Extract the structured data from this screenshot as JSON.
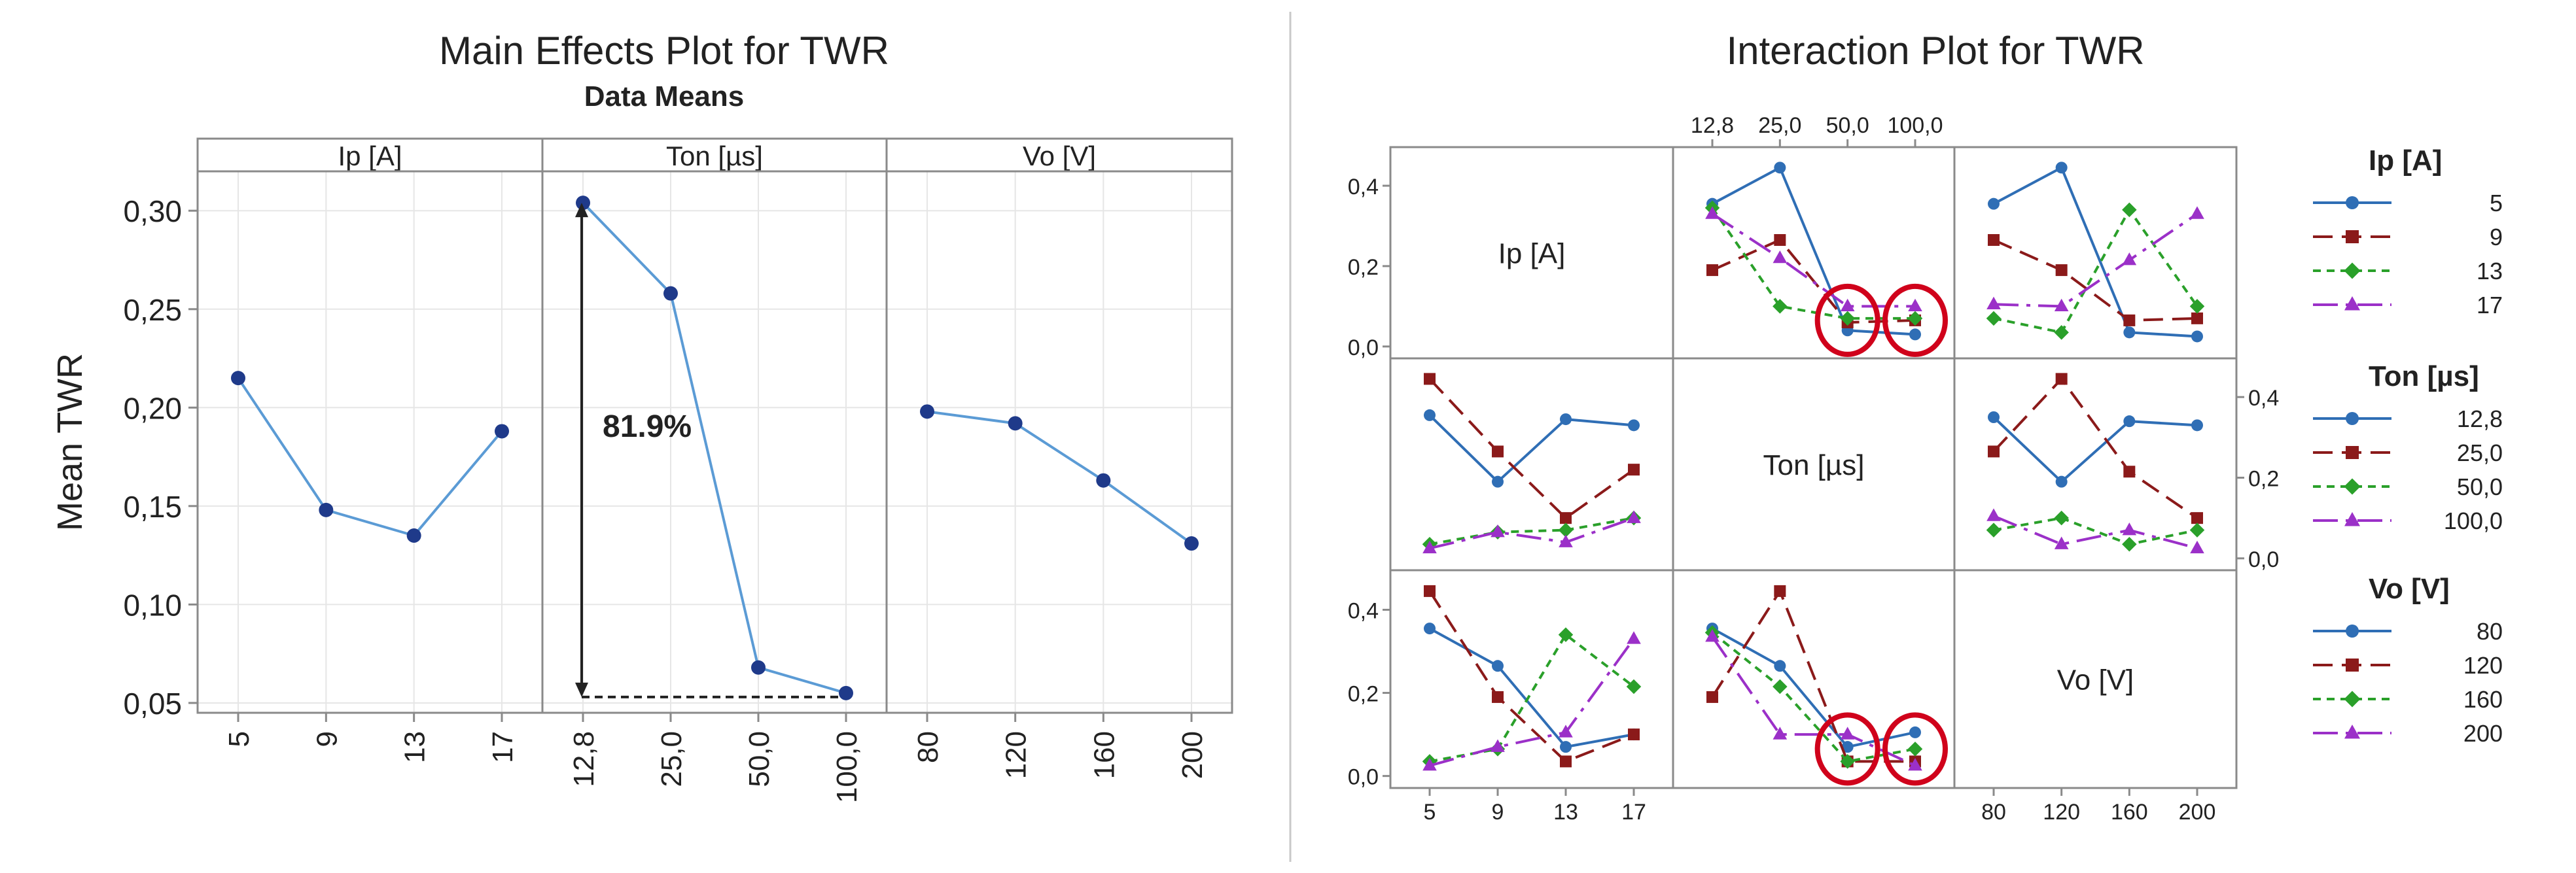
{
  "colors": {
    "main_line": "#5b9bd5",
    "main_dot": "#1f3a8a",
    "frame": "#8a8a8a",
    "grid": "#e6e6e6",
    "arrow": "#222222",
    "circle": "#d0021b",
    "ip_series": [
      "#2f6eb5",
      "#8b1a1a",
      "#2aa02a",
      "#9b30c8"
    ],
    "ton_series": [
      "#2f6eb5",
      "#8b1a1a",
      "#2aa02a",
      "#9b30c8"
    ],
    "vo_series": [
      "#2f6eb5",
      "#8b1a1a",
      "#2aa02a",
      "#9b30c8"
    ]
  },
  "chart_data": [
    {
      "type": "line",
      "title": "Main Effects Plot for TWR",
      "subtitle": "Data Means",
      "ylabel": "Mean TWR",
      "ylim": [
        0.045,
        0.32
      ],
      "yticks": [
        "0,05",
        "0,10",
        "0,15",
        "0,20",
        "0,25",
        "0,30"
      ],
      "ytick_values": [
        0.05,
        0.1,
        0.15,
        0.2,
        0.25,
        0.3
      ],
      "panels": [
        {
          "factor": "Ip [A]",
          "categories": [
            "5",
            "9",
            "13",
            "17"
          ],
          "values": [
            0.215,
            0.148,
            0.135,
            0.188
          ]
        },
        {
          "factor": "Ton [µs]",
          "categories": [
            "12,8",
            "25,0",
            "50,0",
            "100,0"
          ],
          "values": [
            0.304,
            0.258,
            0.068,
            0.055
          ]
        },
        {
          "factor": "Vo [V]",
          "categories": [
            "80",
            "120",
            "160",
            "200"
          ],
          "values": [
            0.198,
            0.192,
            0.163,
            0.131
          ]
        }
      ],
      "annotation": {
        "text": "81.9%",
        "from": 0.304,
        "to": 0.053
      }
    },
    {
      "type": "line",
      "title": "Interaction Plot for TWR",
      "factors": [
        {
          "name": "Ip [A]",
          "levels": [
            "5",
            "9",
            "13",
            "17"
          ]
        },
        {
          "name": "Ton [µs]",
          "levels": [
            "12,8",
            "25,0",
            "50,0",
            "100,0"
          ]
        },
        {
          "name": "Vo [V]",
          "levels": [
            "80",
            "120",
            "160",
            "200"
          ]
        }
      ],
      "yticks": [
        "0,0",
        "0,2",
        "0,4"
      ],
      "ytick_values": [
        0.0,
        0.2,
        0.4
      ],
      "ylim": [
        -0.01,
        0.47
      ],
      "cells": [
        {
          "row": 0,
          "col": 1,
          "x_factor": "Ton [µs]",
          "trace_factor": "Ip [A]",
          "series": [
            {
              "name": "5",
              "values": [
                0.355,
                0.445,
                0.04,
                0.03
              ]
            },
            {
              "name": "9",
              "values": [
                0.19,
                0.265,
                0.06,
                0.065
              ]
            },
            {
              "name": "13",
              "values": [
                0.345,
                0.1,
                0.07,
                0.07
              ]
            },
            {
              "name": "17",
              "values": [
                0.33,
                0.22,
                0.1,
                0.1
              ]
            }
          ]
        },
        {
          "row": 0,
          "col": 2,
          "x_factor": "Vo [V]",
          "trace_factor": "Ip [A]",
          "series": [
            {
              "name": "5",
              "values": [
                0.355,
                0.445,
                0.035,
                0.025
              ]
            },
            {
              "name": "9",
              "values": [
                0.265,
                0.19,
                0.065,
                0.07
              ]
            },
            {
              "name": "13",
              "values": [
                0.07,
                0.035,
                0.34,
                0.1
              ]
            },
            {
              "name": "17",
              "values": [
                0.105,
                0.1,
                0.215,
                0.33
              ]
            }
          ]
        },
        {
          "row": 1,
          "col": 0,
          "x_factor": "Ip [A]",
          "trace_factor": "Ton [µs]",
          "series": [
            {
              "name": "12,8",
              "values": [
                0.355,
                0.19,
                0.345,
                0.33
              ]
            },
            {
              "name": "25,0",
              "values": [
                0.445,
                0.265,
                0.1,
                0.22
              ]
            },
            {
              "name": "50,0",
              "values": [
                0.035,
                0.065,
                0.07,
                0.1
              ]
            },
            {
              "name": "100,0",
              "values": [
                0.025,
                0.065,
                0.04,
                0.1
              ]
            }
          ]
        },
        {
          "row": 1,
          "col": 2,
          "x_factor": "Vo [V]",
          "trace_factor": "Ton [µs]",
          "series": [
            {
              "name": "12,8",
              "values": [
                0.35,
                0.19,
                0.34,
                0.33
              ]
            },
            {
              "name": "25,0",
              "values": [
                0.265,
                0.445,
                0.215,
                0.1
              ]
            },
            {
              "name": "50,0",
              "values": [
                0.07,
                0.1,
                0.035,
                0.07
              ]
            },
            {
              "name": "100,0",
              "values": [
                0.105,
                0.035,
                0.07,
                0.025
              ]
            }
          ]
        },
        {
          "row": 2,
          "col": 0,
          "x_factor": "Ip [A]",
          "trace_factor": "Vo [V]",
          "series": [
            {
              "name": "80",
              "values": [
                0.355,
                0.265,
                0.07,
                0.1
              ]
            },
            {
              "name": "120",
              "values": [
                0.445,
                0.19,
                0.035,
                0.1
              ]
            },
            {
              "name": "160",
              "values": [
                0.035,
                0.065,
                0.34,
                0.215
              ]
            },
            {
              "name": "200",
              "values": [
                0.025,
                0.07,
                0.105,
                0.33
              ]
            }
          ]
        },
        {
          "row": 2,
          "col": 1,
          "x_factor": "Ton [µs]",
          "trace_factor": "Vo [V]",
          "series": [
            {
              "name": "80",
              "values": [
                0.355,
                0.265,
                0.07,
                0.105
              ]
            },
            {
              "name": "120",
              "values": [
                0.19,
                0.445,
                0.035,
                0.035
              ]
            },
            {
              "name": "160",
              "values": [
                0.345,
                0.215,
                0.035,
                0.065
              ]
            },
            {
              "name": "200",
              "values": [
                0.335,
                0.1,
                0.1,
                0.025
              ]
            }
          ]
        }
      ],
      "legends": [
        {
          "title": "Ip [A]",
          "entries": [
            "5",
            "9",
            "13",
            "17"
          ]
        },
        {
          "title": "Ton [µs]",
          "entries": [
            "12,8",
            "25,0",
            "50,0",
            "100,0"
          ]
        },
        {
          "title": "Vo [V]",
          "entries": [
            "80",
            "120",
            "160",
            "200"
          ]
        }
      ],
      "highlighted_levels": [
        "50,0",
        "100,0"
      ]
    }
  ]
}
